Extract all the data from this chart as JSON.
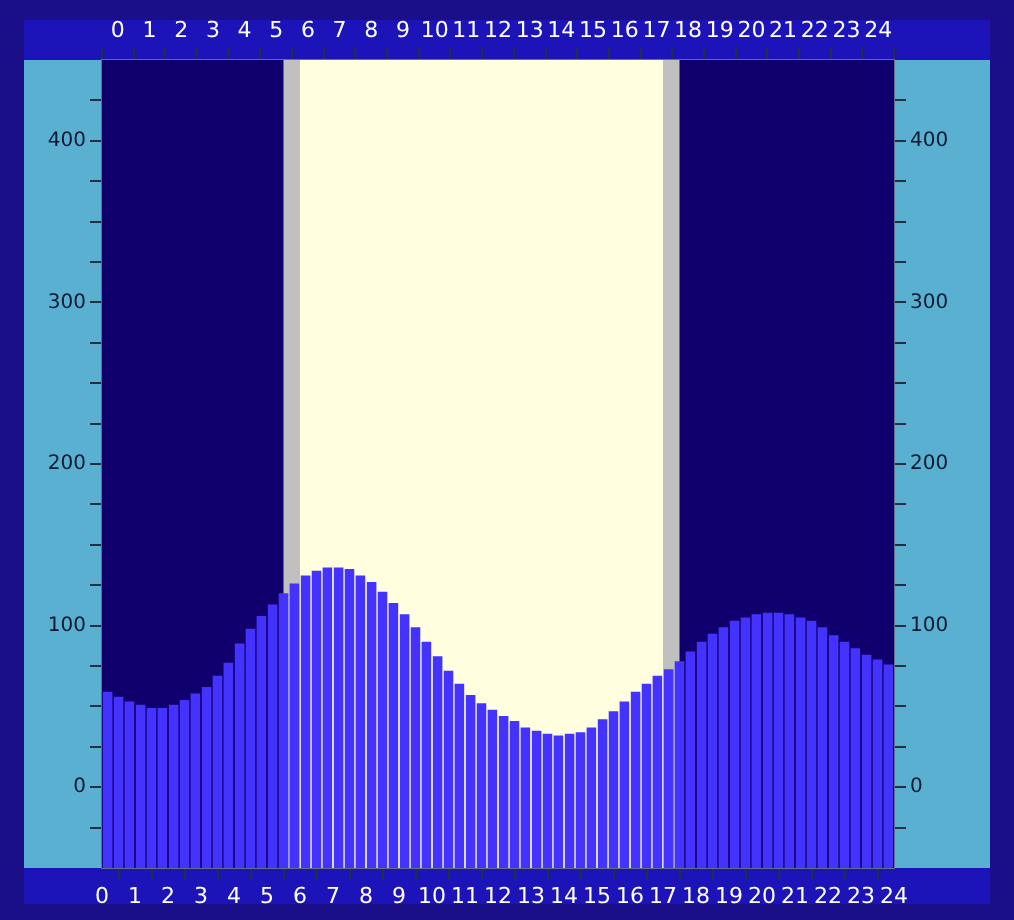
{
  "chart_data": {
    "type": "bar",
    "color": "#4433ff",
    "x": [
      0.17,
      0.5,
      0.83,
      1.17,
      1.5,
      1.83,
      2.17,
      2.5,
      2.83,
      3.17,
      3.5,
      3.83,
      4.17,
      4.5,
      4.83,
      5.17,
      5.5,
      5.83,
      6.17,
      6.5,
      6.83,
      7.17,
      7.5,
      7.83,
      8.17,
      8.5,
      8.83,
      9.17,
      9.5,
      9.83,
      10.17,
      10.5,
      10.83,
      11.17,
      11.5,
      11.83,
      12.17,
      12.5,
      12.83,
      13.17,
      13.5,
      13.83,
      14.17,
      14.5,
      14.83,
      15.17,
      15.5,
      15.83,
      16.17,
      16.5,
      16.83,
      17.17,
      17.5,
      17.83,
      18.17,
      18.5,
      18.83,
      19.17,
      19.5,
      19.83,
      20.17,
      20.5,
      20.83,
      21.17,
      21.5,
      21.83,
      22.17,
      22.5,
      22.83,
      23.17,
      23.5,
      23.83
    ],
    "values": [
      109,
      106,
      103,
      101,
      99,
      99,
      101,
      104,
      108,
      112,
      119,
      127,
      139,
      148,
      156,
      163,
      170,
      176,
      181,
      184,
      186,
      186,
      185,
      181,
      177,
      171,
      164,
      157,
      149,
      140,
      131,
      122,
      114,
      107,
      102,
      98,
      94,
      91,
      87,
      85,
      83,
      82,
      83,
      84,
      87,
      92,
      97,
      103,
      109,
      114,
      119,
      123,
      128,
      134,
      140,
      145,
      149,
      153,
      155,
      157,
      158,
      158,
      157,
      155,
      153,
      149,
      144,
      140,
      136,
      132,
      129,
      126
    ],
    "base": [
      -50,
      -50,
      -50,
      -50,
      -50,
      -50,
      -50,
      -50,
      -50,
      -50,
      -50,
      -50,
      -50,
      -50,
      -50,
      -50,
      -50,
      -50,
      -50,
      -50,
      -50,
      -50,
      -50,
      -50,
      -50,
      -50,
      -50,
      -50,
      -50,
      -50,
      -50,
      -50,
      -50,
      -50,
      -50,
      -50,
      -50,
      -50,
      -50,
      -50,
      -50,
      -50,
      -50,
      -50,
      -50,
      -50,
      -50,
      -50,
      -50,
      -50,
      -50,
      -50,
      -50,
      -50,
      -50,
      -50,
      -50,
      -50,
      -50,
      -50,
      -50,
      -50,
      -50,
      -50,
      -50,
      -50,
      -50,
      -50,
      -50,
      -50,
      -50,
      -50
    ],
    "xlim": [
      0,
      24
    ],
    "xticks": [
      0,
      1,
      2,
      3,
      4,
      5,
      6,
      7,
      8,
      9,
      10,
      11,
      12,
      13,
      14,
      15,
      16,
      17,
      18,
      19,
      20,
      21,
      22,
      23,
      24
    ],
    "x2lim": [
      0,
      24
    ],
    "x2ticks": [
      0,
      1,
      2,
      3,
      4,
      5,
      6,
      7,
      8,
      9,
      10,
      11,
      12,
      13,
      14,
      15,
      16,
      17,
      18,
      19,
      20,
      21,
      22,
      23,
      24
    ],
    "ylim": [
      -50,
      450
    ],
    "yticks": [
      {
        "value": -25,
        "label": null
      },
      0,
      {
        "value": 25,
        "label": null
      },
      {
        "value": 50,
        "label": null
      },
      {
        "value": 75,
        "label": null
      },
      100,
      {
        "value": 125,
        "label": null
      },
      {
        "value": 150,
        "label": null
      },
      {
        "value": 175,
        "label": null
      },
      200,
      {
        "value": 225,
        "label": null
      },
      {
        "value": 250,
        "label": null
      },
      {
        "value": 275,
        "label": null
      },
      300,
      {
        "value": 325,
        "label": null
      },
      {
        "value": 350,
        "label": null
      },
      {
        "value": 375,
        "label": null
      },
      400,
      {
        "value": 425,
        "label": null
      }
    ],
    "y2lim": [
      -50,
      450
    ],
    "y2ticks": [
      {
        "value": -25,
        "label": null
      },
      0,
      {
        "value": 25,
        "label": null
      },
      {
        "value": 50,
        "label": null
      },
      {
        "value": 75,
        "label": null
      },
      100,
      {
        "value": 125,
        "label": null
      },
      {
        "value": 150,
        "label": null
      },
      {
        "value": 175,
        "label": null
      },
      200,
      {
        "value": 225,
        "label": null
      },
      {
        "value": 250,
        "label": null
      },
      {
        "value": 275,
        "label": null
      },
      300,
      {
        "value": 325,
        "label": null
      },
      {
        "value": 350,
        "label": null
      },
      {
        "value": 375,
        "label": null
      },
      400,
      {
        "value": 425,
        "label": null
      }
    ],
    "bands": [
      {
        "axis": "x",
        "from": 5.5,
        "to": 6,
        "color": "#c0c0c0"
      },
      {
        "axis": "x",
        "from": 6,
        "to": 17,
        "color": "#ffffe0"
      },
      {
        "axis": "x",
        "from": 17,
        "to": 17.5,
        "color": "#c0c0c0"
      }
    ]
  }
}
